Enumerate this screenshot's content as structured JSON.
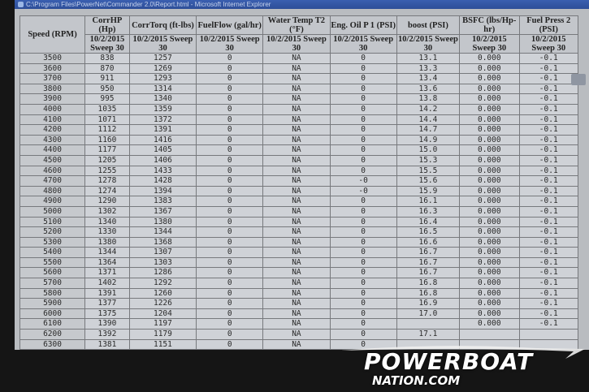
{
  "window": {
    "title": "C:\\Program Files\\PowerNet\\Commander 2.0\\Report.html - Microsoft Internet Explorer"
  },
  "table": {
    "headers": [
      "Speed (RPM)",
      "CorrHP (Hp)",
      "CorrTorq (ft-lbs)",
      "FuelFlow (gal/hr)",
      "Water Temp T2 (°F)",
      "Eng. Oil P 1 (PSI)",
      "boost (PSI)",
      "BSFC (lbs/Hp-hr)",
      "Fuel Press 2 (PSI)"
    ],
    "subheader": "10/2/2015 Sweep 30",
    "rows": [
      [
        "3500",
        "838",
        "1257",
        "0",
        "NA",
        "0",
        "13.1",
        "0.000",
        "-0.1"
      ],
      [
        "3600",
        "870",
        "1269",
        "0",
        "NA",
        "0",
        "13.3",
        "0.000",
        "-0.1"
      ],
      [
        "3700",
        "911",
        "1293",
        "0",
        "NA",
        "0",
        "13.4",
        "0.000",
        "-0.1"
      ],
      [
        "3800",
        "950",
        "1314",
        "0",
        "NA",
        "0",
        "13.6",
        "0.000",
        "-0.1"
      ],
      [
        "3900",
        "995",
        "1340",
        "0",
        "NA",
        "0",
        "13.8",
        "0.000",
        "-0.1"
      ],
      [
        "4000",
        "1035",
        "1359",
        "0",
        "NA",
        "0",
        "14.2",
        "0.000",
        "-0.1"
      ],
      [
        "4100",
        "1071",
        "1372",
        "0",
        "NA",
        "0",
        "14.4",
        "0.000",
        "-0.1"
      ],
      [
        "4200",
        "1112",
        "1391",
        "0",
        "NA",
        "0",
        "14.7",
        "0.000",
        "-0.1"
      ],
      [
        "4300",
        "1160",
        "1416",
        "0",
        "NA",
        "0",
        "14.9",
        "0.000",
        "-0.1"
      ],
      [
        "4400",
        "1177",
        "1405",
        "0",
        "NA",
        "0",
        "15.0",
        "0.000",
        "-0.1"
      ],
      [
        "4500",
        "1205",
        "1406",
        "0",
        "NA",
        "0",
        "15.3",
        "0.000",
        "-0.1"
      ],
      [
        "4600",
        "1255",
        "1433",
        "0",
        "NA",
        "0",
        "15.5",
        "0.000",
        "-0.1"
      ],
      [
        "4700",
        "1278",
        "1428",
        "0",
        "NA",
        "-0",
        "15.6",
        "0.000",
        "-0.1"
      ],
      [
        "4800",
        "1274",
        "1394",
        "0",
        "NA",
        "-0",
        "15.9",
        "0.000",
        "-0.1"
      ],
      [
        "4900",
        "1290",
        "1383",
        "0",
        "NA",
        "0",
        "16.1",
        "0.000",
        "-0.1"
      ],
      [
        "5000",
        "1302",
        "1367",
        "0",
        "NA",
        "0",
        "16.3",
        "0.000",
        "-0.1"
      ],
      [
        "5100",
        "1340",
        "1380",
        "0",
        "NA",
        "0",
        "16.4",
        "0.000",
        "-0.1"
      ],
      [
        "5200",
        "1330",
        "1344",
        "0",
        "NA",
        "0",
        "16.5",
        "0.000",
        "-0.1"
      ],
      [
        "5300",
        "1380",
        "1368",
        "0",
        "NA",
        "0",
        "16.6",
        "0.000",
        "-0.1"
      ],
      [
        "5400",
        "1344",
        "1307",
        "0",
        "NA",
        "0",
        "16.7",
        "0.000",
        "-0.1"
      ],
      [
        "5500",
        "1364",
        "1303",
        "0",
        "NA",
        "0",
        "16.7",
        "0.000",
        "-0.1"
      ],
      [
        "5600",
        "1371",
        "1286",
        "0",
        "NA",
        "0",
        "16.7",
        "0.000",
        "-0.1"
      ],
      [
        "5700",
        "1402",
        "1292",
        "0",
        "NA",
        "0",
        "16.8",
        "0.000",
        "-0.1"
      ],
      [
        "5800",
        "1391",
        "1260",
        "0",
        "NA",
        "0",
        "16.8",
        "0.000",
        "-0.1"
      ],
      [
        "5900",
        "1377",
        "1226",
        "0",
        "NA",
        "0",
        "16.9",
        "0.000",
        "-0.1"
      ],
      [
        "6000",
        "1375",
        "1204",
        "0",
        "NA",
        "0",
        "17.0",
        "0.000",
        "-0.1"
      ],
      [
        "6100",
        "1390",
        "1197",
        "0",
        "NA",
        "0",
        "",
        "0.000",
        "-0.1"
      ],
      [
        "6200",
        "1392",
        "1179",
        "0",
        "NA",
        "0",
        "17.1",
        "",
        ""
      ],
      [
        "6300",
        "1381",
        "1151",
        "0",
        "NA",
        "0",
        "",
        "",
        ""
      ]
    ]
  },
  "watermark": {
    "line1": "POWERBOAT",
    "line2": "NATION.COM"
  }
}
